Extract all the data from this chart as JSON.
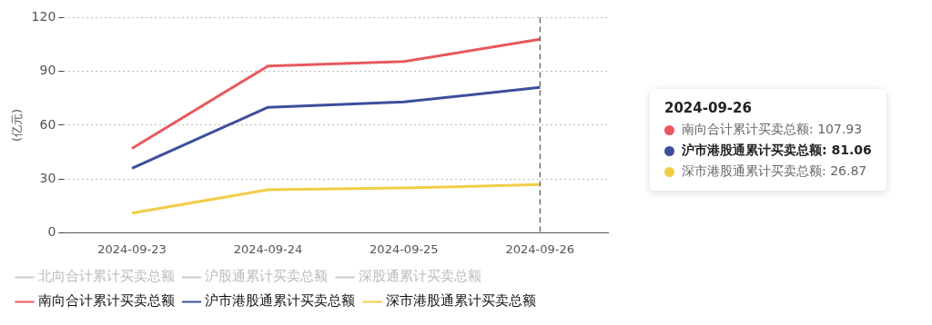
{
  "chart_data": {
    "type": "line",
    "ylabel": "(亿元)",
    "categories": [
      "2024-09-23",
      "2024-09-24",
      "2024-09-25",
      "2024-09-26"
    ],
    "series": [
      {
        "name": "北向合计累计买卖总额",
        "color": "#cccccc",
        "values": [
          null,
          null,
          null,
          null
        ]
      },
      {
        "name": "沪股通累计买卖总额",
        "color": "#cccccc",
        "values": [
          null,
          null,
          null,
          null
        ]
      },
      {
        "name": "深股通累计买卖总额",
        "color": "#cccccc",
        "values": [
          null,
          null,
          null,
          null
        ]
      },
      {
        "name": "南向合计累计买卖总额",
        "color": "#e8595c",
        "values": [
          47,
          93,
          95.5,
          107.93
        ]
      },
      {
        "name": "沪市港股通累计买卖总额",
        "color": "#3d4f9b",
        "values": [
          36,
          70,
          73,
          81.06
        ]
      },
      {
        "name": "深市港股通累计买卖总额",
        "color": "#f2cd48",
        "values": [
          11,
          24,
          25,
          26.87
        ]
      }
    ],
    "ylim": [
      0,
      120
    ],
    "yticks": [
      0,
      30,
      60,
      90,
      120
    ],
    "grid": "y",
    "legend": "bottom",
    "marker": "none",
    "line_style": "solid",
    "ref_lines": [
      {
        "axis": "x",
        "value": "2024-09-26",
        "line_style": "dashed",
        "color": "#333333"
      }
    ],
    "annotations": [
      "2024-09-26",
      "南向合计累计买卖总额: 107.93",
      "沪市港股通累计买卖总额: 81.06",
      "深市港股通累计买卖总额: 26.87"
    ]
  }
}
